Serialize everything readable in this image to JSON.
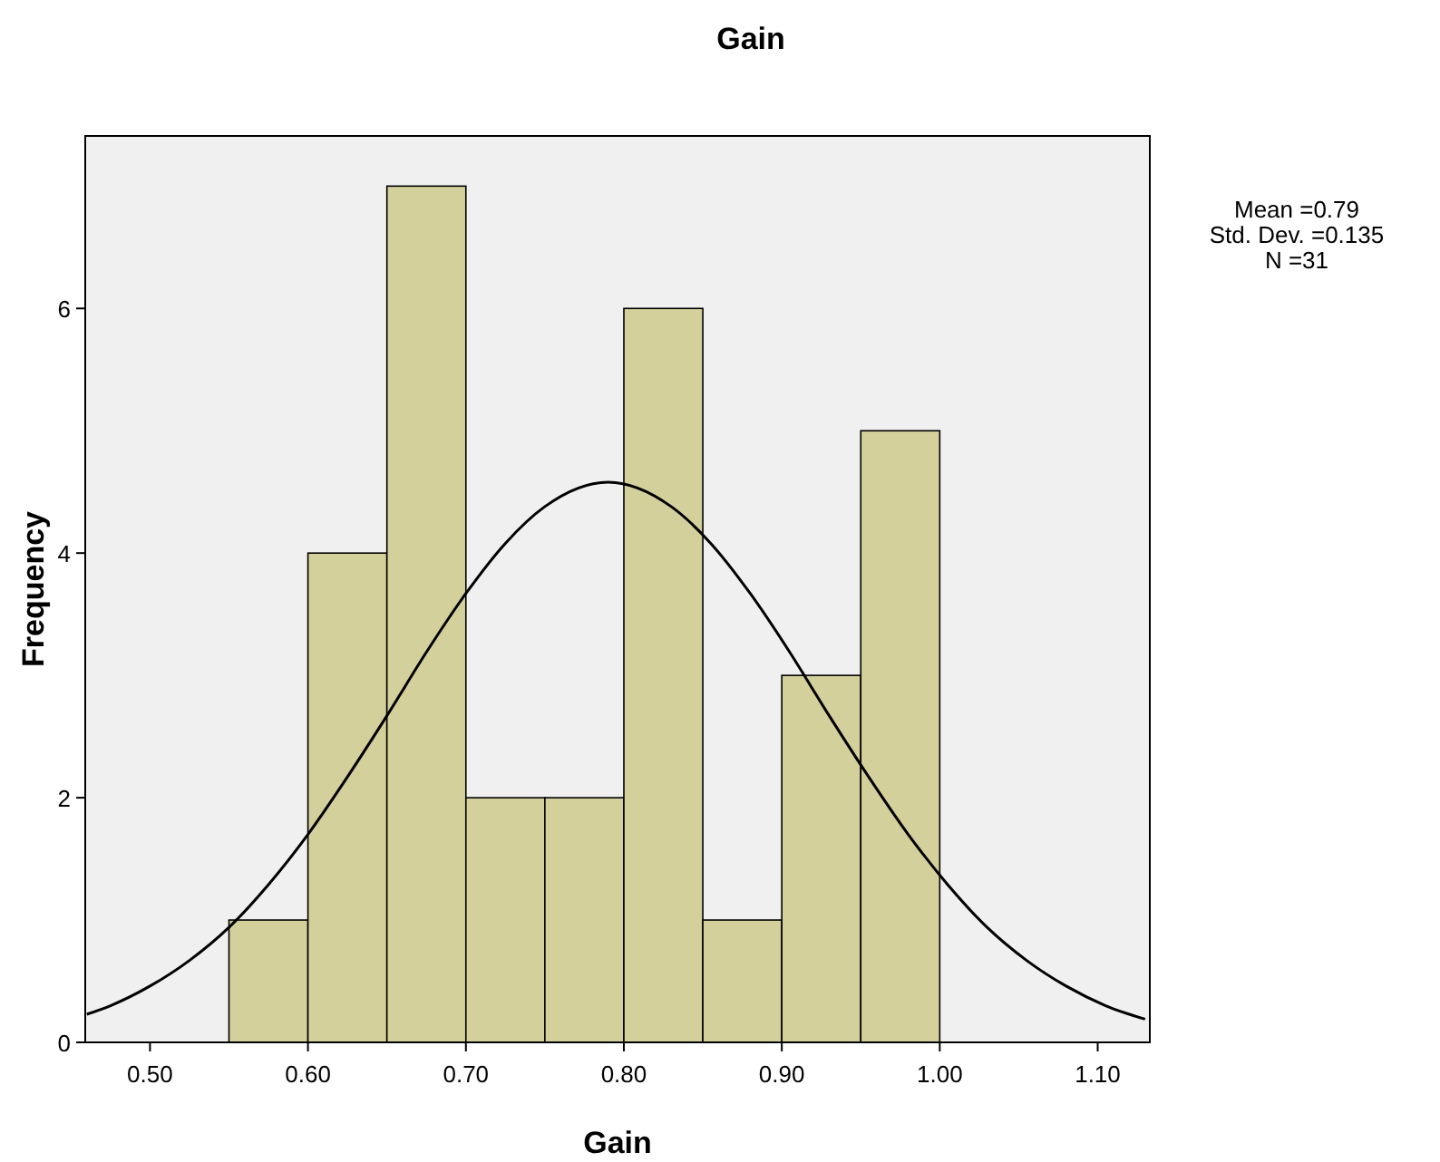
{
  "chart_data": {
    "type": "histogram",
    "title": "Gain",
    "xlabel": "Gain",
    "ylabel": "Frequency",
    "bins": [
      0.55,
      0.6,
      0.65,
      0.7,
      0.75,
      0.8,
      0.85,
      0.9,
      0.95,
      1.0
    ],
    "values": [
      1,
      4,
      7,
      2,
      2,
      6,
      1,
      3,
      5
    ],
    "color": "#d4d09b",
    "series": [
      {
        "type": "line",
        "color": "#000000",
        "x": [
          0.46,
          0.475,
          0.5,
          0.525,
          0.55,
          0.575,
          0.6,
          0.625,
          0.65,
          0.675,
          0.7,
          0.725,
          0.75,
          0.79,
          0.83,
          0.855,
          0.88,
          0.905,
          0.93,
          0.955,
          0.98,
          1.005,
          1.03,
          1.055,
          1.08,
          1.105,
          1.13
        ],
        "values": [
          0.23,
          0.3,
          0.46,
          0.67,
          0.94,
          1.29,
          1.7,
          2.17,
          2.67,
          3.19,
          3.67,
          4.08,
          4.38,
          4.58,
          4.38,
          4.08,
          3.67,
          3.19,
          2.67,
          2.17,
          1.7,
          1.29,
          0.94,
          0.67,
          0.46,
          0.3,
          0.19
        ]
      }
    ],
    "xlim": [
      0.459,
      1.133
    ],
    "ylim": [
      0,
      7.41
    ],
    "xticks": [
      {
        "value": 0.5,
        "label": "0.50"
      },
      {
        "value": 0.6,
        "label": "0.60"
      },
      {
        "value": 0.7,
        "label": "0.70"
      },
      {
        "value": 0.8,
        "label": "0.80"
      },
      {
        "value": 0.9,
        "label": "0.90"
      },
      {
        "value": 1.0,
        "label": "1.00"
      },
      {
        "value": 1.1,
        "label": "1.10"
      }
    ],
    "yticks": [
      0,
      2,
      4,
      6
    ],
    "annotations": [
      "Mean =0.79",
      "Std. Dev. =0.135",
      "N =31"
    ],
    "grid": false
  }
}
